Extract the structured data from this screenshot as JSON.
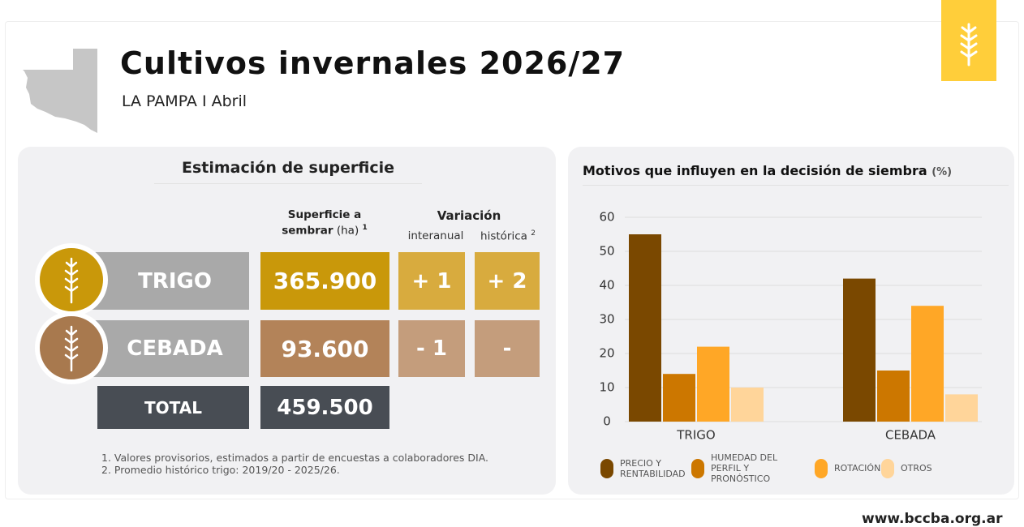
{
  "header": {
    "title": "Cultivos invernales 2026/27",
    "subtitle": "LA PAMPA I Abril"
  },
  "table": {
    "title": "Estimación de superficie",
    "columns": {
      "area": {
        "label": "Superficie a sembrar",
        "unit": "(ha)",
        "note": "1"
      },
      "variation": {
        "label": "Variación",
        "sub": [
          "interanual",
          "histórica"
        ],
        "note": "2"
      }
    },
    "rows": [
      {
        "crop": "TRIGO",
        "area": "365.900",
        "interannual": "+ 1",
        "historical": "+ 2"
      },
      {
        "crop": "CEBADA",
        "area": "93.600",
        "interannual": "- 1",
        "historical": "-"
      },
      {
        "crop": "TOTAL",
        "area": "459.500"
      }
    ],
    "notes": [
      "1. Valores provisorios, estimados a partir de encuestas a colaboradores DIA.",
      "2. Promedio histórico trigo: 2019/20 - 2025/26."
    ]
  },
  "chart_data": {
    "type": "bar",
    "title": "Motivos que influyen en la decisión de siembra",
    "unit": "(%)",
    "categories": [
      "TRIGO",
      "CEBADA"
    ],
    "series": [
      {
        "name": "PRECIO Y RENTABILIDAD",
        "color": "#7a4800",
        "values": [
          55,
          42
        ]
      },
      {
        "name": "HUMEDAD DEL PERFIL Y PRONÓSTICO",
        "color": "#cc7700",
        "values": [
          14,
          15
        ]
      },
      {
        "name": "ROTACIÓN",
        "color": "#ffa726",
        "values": [
          22,
          34
        ]
      },
      {
        "name": "OTROS",
        "color": "#ffd59a",
        "values": [
          10,
          8
        ]
      }
    ],
    "ylim": [
      0,
      60
    ],
    "yticks": [
      0,
      10,
      20,
      30,
      40,
      50,
      60
    ],
    "grid": true
  },
  "footer": "www.bccba.org.ar"
}
